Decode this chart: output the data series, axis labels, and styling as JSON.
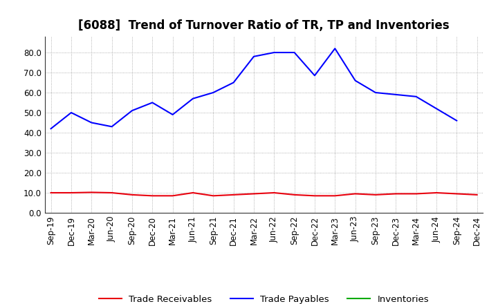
{
  "title": "[6088]  Trend of Turnover Ratio of TR, TP and Inventories",
  "x_labels": [
    "Sep-19",
    "Dec-19",
    "Mar-20",
    "Jun-20",
    "Sep-20",
    "Dec-20",
    "Mar-21",
    "Jun-21",
    "Sep-21",
    "Dec-21",
    "Mar-22",
    "Jun-22",
    "Sep-22",
    "Dec-22",
    "Mar-23",
    "Jun-23",
    "Sep-23",
    "Dec-23",
    "Mar-24",
    "Jun-24",
    "Sep-24",
    "Dec-24"
  ],
  "trade_receivables": [
    10.0,
    10.0,
    10.2,
    10.0,
    9.0,
    8.5,
    8.5,
    10.0,
    8.5,
    9.0,
    9.5,
    10.0,
    9.0,
    8.5,
    8.5,
    9.5,
    9.0,
    9.5,
    9.5,
    10.0,
    9.5,
    9.0
  ],
  "trade_payables": [
    42.0,
    50.0,
    45.0,
    43.0,
    51.0,
    55.0,
    49.0,
    57.0,
    60.0,
    65.0,
    78.0,
    80.0,
    80.0,
    68.5,
    82.0,
    66.0,
    60.0,
    59.0,
    58.0,
    52.0,
    46.0,
    null
  ],
  "inventories": [
    null,
    null,
    null,
    null,
    null,
    null,
    null,
    null,
    null,
    null,
    null,
    null,
    null,
    null,
    null,
    null,
    null,
    null,
    null,
    null,
    null,
    null
  ],
  "ylim": [
    0,
    88
  ],
  "yticks": [
    0.0,
    10.0,
    20.0,
    30.0,
    40.0,
    50.0,
    60.0,
    70.0,
    80.0
  ],
  "line_color_tr": "#e8000d",
  "line_color_tp": "#0000ff",
  "line_color_inv": "#00aa00",
  "bg_color": "#ffffff",
  "grid_color": "#999999",
  "legend_labels": [
    "Trade Receivables",
    "Trade Payables",
    "Inventories"
  ],
  "title_fontsize": 12,
  "tick_fontsize": 8.5,
  "legend_fontsize": 9.5
}
